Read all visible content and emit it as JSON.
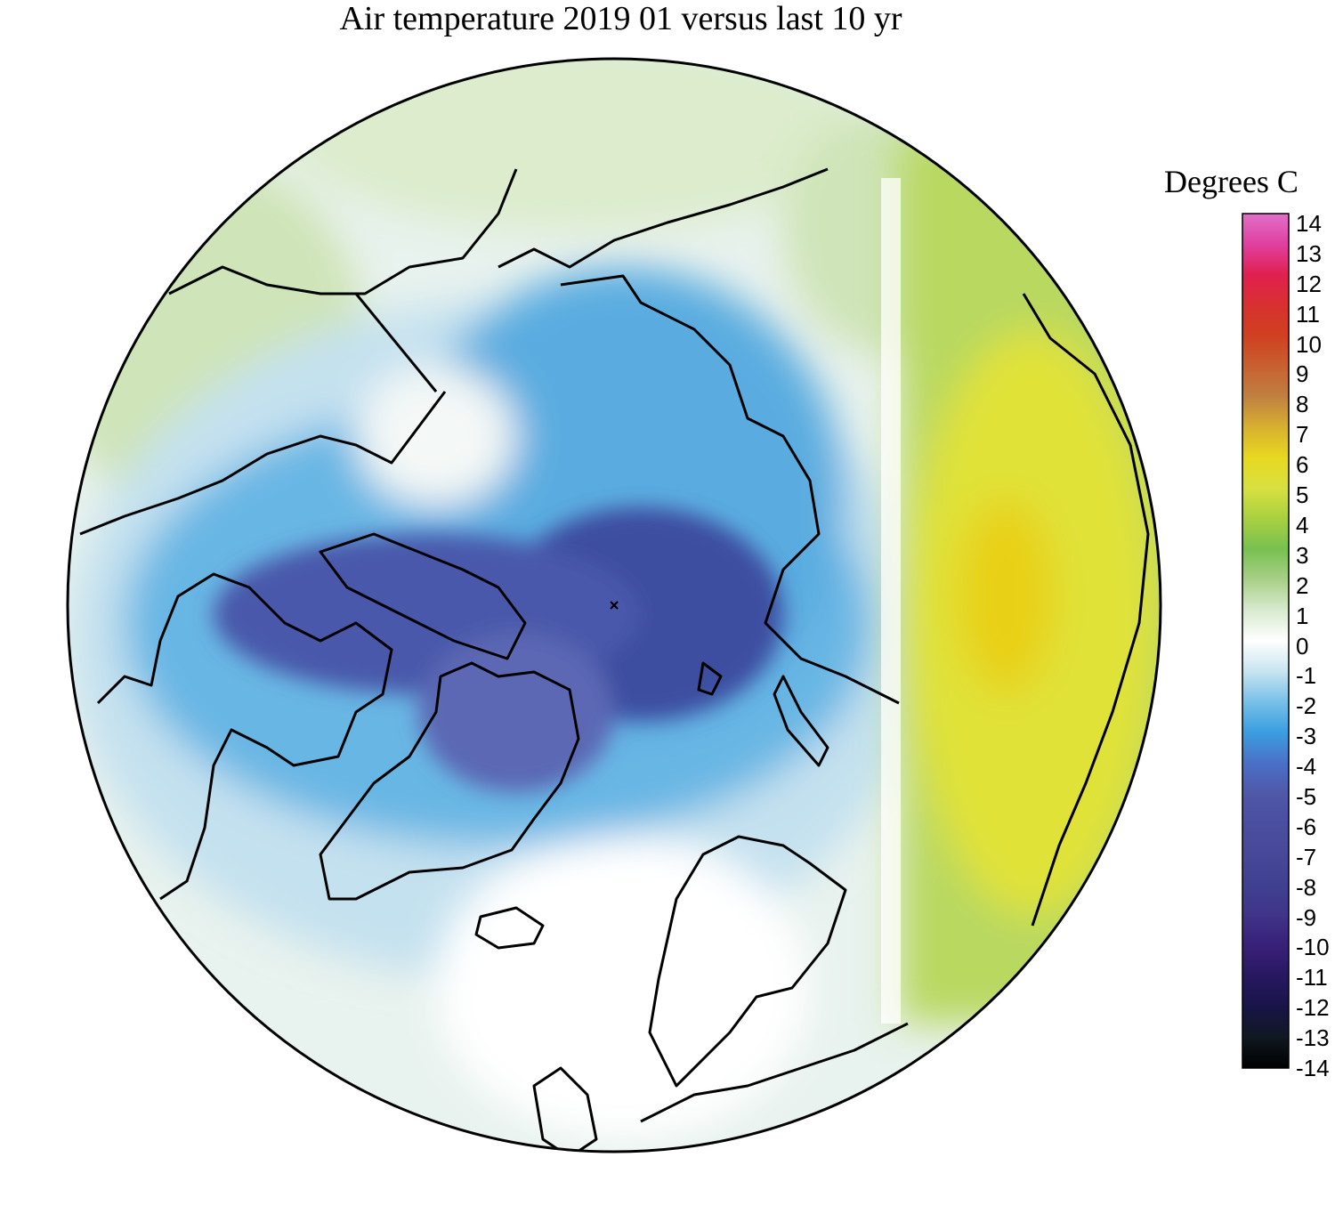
{
  "title": "Air temperature 2019 01 versus last 10 yr",
  "colorbar": {
    "title": "Degrees C",
    "min": -14,
    "max": 14,
    "ticks": [
      "14",
      "13",
      "12",
      "11",
      "10",
      "9",
      "8",
      "7",
      "6",
      "5",
      "4",
      "3",
      "2",
      "1",
      "0",
      "-1",
      "-2",
      "-3",
      "-4",
      "-5",
      "-6",
      "-7",
      "-8",
      "-9",
      "-10",
      "-11",
      "-12",
      "-13",
      "-14"
    ],
    "colors": [
      "#e070c8",
      "#e040a0",
      "#e02050",
      "#d83030",
      "#d04020",
      "#c86030",
      "#c08040",
      "#d8b030",
      "#e8d820",
      "#d8e040",
      "#a8d040",
      "#78c050",
      "#a8d088",
      "#d8ead0",
      "#ffffff",
      "#c8e4f0",
      "#78c0e8",
      "#3a9ee0",
      "#4a70c8",
      "#5058a8",
      "#4a4ea0",
      "#484898",
      "#404090",
      "#403488",
      "#382078",
      "#281860",
      "#181448",
      "#101820",
      "#000000"
    ]
  },
  "map": {
    "projection": "north-polar-stereographic",
    "variable": "air temperature anomaly"
  }
}
